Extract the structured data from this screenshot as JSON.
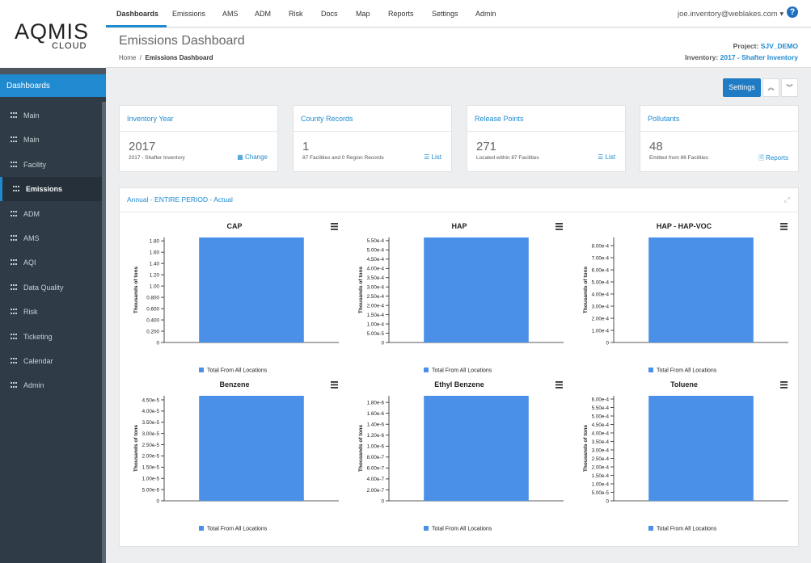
{
  "logo": "AQMIS",
  "logo_sub": "CLOUD",
  "nav": [
    "Dashboards",
    "Emissions",
    "AMS",
    "ADM",
    "Risk",
    "Docs",
    "Map",
    "Reports",
    "Settings",
    "Admin"
  ],
  "user": "joe.inventory@weblakes.com",
  "sidebar": {
    "section": "Dashboards",
    "items": [
      "Main",
      "Main",
      "Facility",
      "Emissions",
      "ADM",
      "AMS",
      "AQI",
      "Data Quality",
      "Risk",
      "Ticketing",
      "Calendar",
      "Admin"
    ]
  },
  "header": {
    "title": "Emissions Dashboard",
    "breadcrumb": [
      "Home",
      "Emissions Dashboard"
    ],
    "project_label": "Project:",
    "project": "SJV_DEMO",
    "inventory_label": "Inventory:",
    "inventory": "2017 - Shafter Inventory"
  },
  "settings_button": "Settings",
  "cards": [
    {
      "title": "Inventory Year",
      "value": "2017",
      "sub": "2017 - Shafter Inventory",
      "link": "Change"
    },
    {
      "title": "County Records",
      "value": "1",
      "sub": "87 Facilities and 0 Region Records",
      "link": "List"
    },
    {
      "title": "Release Points",
      "value": "271",
      "sub": "Located within 87 Facilities",
      "link": "List"
    },
    {
      "title": "Pollutants",
      "value": "48",
      "sub": "Emitted from 86 Facilities",
      "link": "Reports"
    }
  ],
  "panel_title": "Annual - ENTIRE PERIOD - Actual",
  "chart_data": [
    {
      "type": "bar",
      "title": "CAP",
      "ylabel": "Thousands of tons",
      "categories": [
        null
      ],
      "series": [
        {
          "name": "Total From All Locations",
          "color": "#4a8fe8",
          "values": [
            1.86
          ]
        }
      ],
      "ylim": [
        0,
        1.86
      ],
      "yticks": [
        0,
        {
          "value": 0.2,
          "label": "0.200"
        },
        {
          "value": 0.4,
          "label": "0.400"
        },
        {
          "value": 0.6,
          "label": "0.600"
        },
        {
          "value": 0.8,
          "label": "0.800"
        },
        {
          "value": 1,
          "label": "1.00"
        },
        {
          "value": 1.2,
          "label": "1.20"
        },
        {
          "value": 1.4,
          "label": "1.40"
        },
        {
          "value": 1.6,
          "label": "1.60"
        },
        {
          "value": 1.8,
          "label": "1.80"
        }
      ]
    },
    {
      "type": "bar",
      "title": "HAP",
      "ylabel": "Thousands of tons",
      "categories": [
        null
      ],
      "series": [
        {
          "name": "Total From All Locations",
          "color": "#4a8fe8",
          "values": [
            0.000567
          ]
        }
      ],
      "ylim": [
        0,
        0.000567
      ],
      "yticks": [
        0,
        {
          "value": 5e-05,
          "label": "5.00e-5"
        },
        {
          "value": 0.0001,
          "label": "1.00e-4"
        },
        {
          "value": 0.00015,
          "label": "1.50e-4"
        },
        {
          "value": 0.0002,
          "label": "2.00e-4"
        },
        {
          "value": 0.00025,
          "label": "2.50e-4"
        },
        {
          "value": 0.0003,
          "label": "3.00e-4"
        },
        {
          "value": 0.00035,
          "label": "3.50e-4"
        },
        {
          "value": 0.0004,
          "label": "4.00e-4"
        },
        {
          "value": 0.00045,
          "label": "4.50e-4"
        },
        {
          "value": 0.0005,
          "label": "5.00e-4"
        },
        {
          "value": 0.00055,
          "label": "5.50e-4"
        }
      ]
    },
    {
      "type": "bar",
      "title": "HAP - HAP-VOC",
      "ylabel": "Thousands of tons",
      "categories": [
        null
      ],
      "series": [
        {
          "name": "Total From All Locations",
          "color": "#4a8fe8",
          "values": [
            0.000867
          ]
        }
      ],
      "ylim": [
        0,
        0.000867
      ],
      "yticks": [
        0,
        {
          "value": 0.0001,
          "label": "1.00e-4"
        },
        {
          "value": 0.0002,
          "label": "2.00e-4"
        },
        {
          "value": 0.0003,
          "label": "3.00e-4"
        },
        {
          "value": 0.0004,
          "label": "4.00e-4"
        },
        {
          "value": 0.0005,
          "label": "5.00e-4"
        },
        {
          "value": 0.0006,
          "label": "6.00e-4"
        },
        {
          "value": 0.0007,
          "label": "7.00e-4"
        },
        {
          "value": 0.0008,
          "label": "8.00e-4"
        }
      ]
    },
    {
      "type": "bar",
      "title": "Benzene",
      "ylabel": "Thousands of tons",
      "categories": [
        null
      ],
      "series": [
        {
          "name": "Total From All Locations",
          "color": "#4a8fe8",
          "values": [
            4.68e-05
          ]
        }
      ],
      "ylim": [
        0,
        4.68e-05
      ],
      "yticks": [
        0,
        {
          "value": 5e-06,
          "label": "5.00e-6"
        },
        {
          "value": 1e-05,
          "label": "1.00e-5"
        },
        {
          "value": 1.5e-05,
          "label": "1.50e-5"
        },
        {
          "value": 2e-05,
          "label": "2.00e-5"
        },
        {
          "value": 2.5e-05,
          "label": "2.50e-5"
        },
        {
          "value": 3e-05,
          "label": "3.00e-5"
        },
        {
          "value": 3.5e-05,
          "label": "3.50e-5"
        },
        {
          "value": 4e-05,
          "label": "4.00e-5"
        },
        {
          "value": 4.5e-05,
          "label": "4.50e-5"
        }
      ]
    },
    {
      "type": "bar",
      "title": "Ethyl Benzene",
      "ylabel": "Thousands of tons",
      "categories": [
        null
      ],
      "series": [
        {
          "name": "Total From All Locations",
          "color": "#4a8fe8",
          "values": [
            1.92e-06
          ]
        }
      ],
      "ylim": [
        0,
        1.92e-06
      ],
      "yticks": [
        0,
        {
          "value": 2e-07,
          "label": "2.00e-7"
        },
        {
          "value": 4e-07,
          "label": "4.00e-7"
        },
        {
          "value": 6e-07,
          "label": "6.00e-7"
        },
        {
          "value": 8e-07,
          "label": "8.00e-7"
        },
        {
          "value": 1e-06,
          "label": "1.00e-6"
        },
        {
          "value": 1.2e-06,
          "label": "1.20e-6"
        },
        {
          "value": 1.4e-06,
          "label": "1.40e-6"
        },
        {
          "value": 1.6e-06,
          "label": "1.60e-6"
        },
        {
          "value": 1.8e-06,
          "label": "1.80e-6"
        }
      ]
    },
    {
      "type": "bar",
      "title": "Toluene",
      "ylabel": "Thousands of tons",
      "categories": [
        null
      ],
      "series": [
        {
          "name": "Total From All Locations",
          "color": "#4a8fe8",
          "values": [
            0.000619
          ]
        }
      ],
      "ylim": [
        0,
        0.000619
      ],
      "yticks": [
        0,
        {
          "value": 5e-05,
          "label": "5.00e-5"
        },
        {
          "value": 0.0001,
          "label": "1.00e-4"
        },
        {
          "value": 0.00015,
          "label": "1.50e-4"
        },
        {
          "value": 0.0002,
          "label": "2.00e-4"
        },
        {
          "value": 0.00025,
          "label": "2.50e-4"
        },
        {
          "value": 0.0003,
          "label": "3.00e-4"
        },
        {
          "value": 0.00035,
          "label": "3.50e-4"
        },
        {
          "value": 0.0004,
          "label": "4.00e-4"
        },
        {
          "value": 0.00045,
          "label": "4.50e-4"
        },
        {
          "value": 0.0005,
          "label": "5.00e-4"
        },
        {
          "value": 0.00055,
          "label": "5.50e-4"
        },
        {
          "value": 0.0006,
          "label": "6.00e-4"
        }
      ]
    }
  ]
}
